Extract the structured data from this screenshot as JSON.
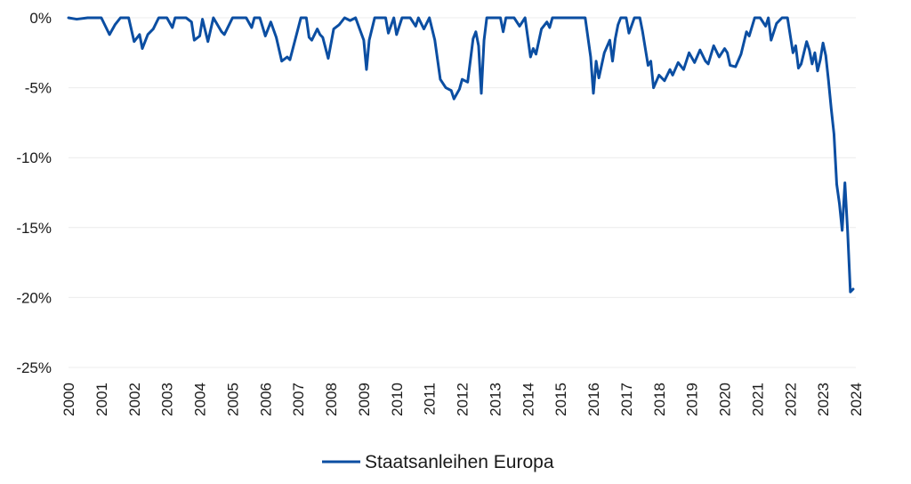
{
  "chart_data": {
    "type": "line",
    "title": "",
    "xlabel": "",
    "ylabel": "",
    "x_ticks": [
      "2000",
      "2001",
      "2002",
      "2003",
      "2004",
      "2005",
      "2006",
      "2007",
      "2008",
      "2009",
      "2010",
      "2011",
      "2012",
      "2013",
      "2014",
      "2015",
      "2016",
      "2017",
      "2018",
      "2019",
      "2020",
      "2021",
      "2022",
      "2023",
      "2024"
    ],
    "y_ticks": [
      0,
      -5,
      -10,
      -15,
      -20,
      -25
    ],
    "y_tick_labels": [
      "0%",
      "-5%",
      "-10%",
      "-15%",
      "-20%",
      "-25%"
    ],
    "xlim": [
      "2000-01",
      "2024-01"
    ],
    "ylim": [
      -25,
      0
    ],
    "grid": "horizontal",
    "legend": "bottom-center",
    "colors": {
      "series": "#0b4ea2",
      "grid": "#ececec",
      "text": "#1a1a1a"
    },
    "series": [
      {
        "name": "Staatsanleihen Europa",
        "points": [
          [
            "2000-01",
            0
          ],
          [
            "2000-04",
            -0.1
          ],
          [
            "2000-08",
            0
          ],
          [
            "2001-01",
            0
          ],
          [
            "2001-04",
            -1.2
          ],
          [
            "2001-06",
            -0.5
          ],
          [
            "2001-08",
            0
          ],
          [
            "2001-11",
            0
          ],
          [
            "2002-01",
            -1.7
          ],
          [
            "2002-03",
            -1.2
          ],
          [
            "2002-04",
            -2.2
          ],
          [
            "2002-06",
            -1.2
          ],
          [
            "2002-08",
            -0.8
          ],
          [
            "2002-10",
            0
          ],
          [
            "2003-01",
            0
          ],
          [
            "2003-03",
            -0.7
          ],
          [
            "2003-04",
            0
          ],
          [
            "2003-08",
            0
          ],
          [
            "2003-10",
            -0.3
          ],
          [
            "2003-11",
            -1.6
          ],
          [
            "2004-01",
            -1.3
          ],
          [
            "2004-02",
            -0.1
          ],
          [
            "2004-04",
            -1.7
          ],
          [
            "2004-06",
            0
          ],
          [
            "2004-09",
            -1.0
          ],
          [
            "2004-10",
            -1.2
          ],
          [
            "2005-01",
            0
          ],
          [
            "2005-06",
            0
          ],
          [
            "2005-08",
            -0.7
          ],
          [
            "2005-09",
            0
          ],
          [
            "2005-11",
            0
          ],
          [
            "2006-01",
            -1.3
          ],
          [
            "2006-03",
            -0.3
          ],
          [
            "2006-05",
            -1.4
          ],
          [
            "2006-07",
            -3.1
          ],
          [
            "2006-09",
            -2.8
          ],
          [
            "2006-10",
            -3.0
          ],
          [
            "2006-12",
            -1.5
          ],
          [
            "2007-02",
            0
          ],
          [
            "2007-04",
            0
          ],
          [
            "2007-05",
            -1.4
          ],
          [
            "2007-06",
            -1.6
          ],
          [
            "2007-08",
            -0.8
          ],
          [
            "2007-09",
            -1.2
          ],
          [
            "2007-10",
            -1.4
          ],
          [
            "2007-12",
            -2.9
          ],
          [
            "2008-02",
            -0.8
          ],
          [
            "2008-04",
            -0.5
          ],
          [
            "2008-06",
            0
          ],
          [
            "2008-08",
            -0.2
          ],
          [
            "2008-10",
            0
          ],
          [
            "2009-01",
            -1.6
          ],
          [
            "2009-02",
            -3.7
          ],
          [
            "2009-03",
            -1.6
          ],
          [
            "2009-05",
            0
          ],
          [
            "2009-09",
            0
          ],
          [
            "2009-10",
            -1.1
          ],
          [
            "2009-12",
            0
          ],
          [
            "2010-01",
            -1.2
          ],
          [
            "2010-03",
            0
          ],
          [
            "2010-06",
            0
          ],
          [
            "2010-08",
            -0.6
          ],
          [
            "2010-09",
            0
          ],
          [
            "2010-11",
            -0.8
          ],
          [
            "2011-01",
            0
          ],
          [
            "2011-03",
            -1.6
          ],
          [
            "2011-05",
            -4.4
          ],
          [
            "2011-07",
            -5.0
          ],
          [
            "2011-09",
            -5.2
          ],
          [
            "2011-10",
            -5.8
          ],
          [
            "2011-12",
            -5.1
          ],
          [
            "2012-01",
            -4.4
          ],
          [
            "2012-03",
            -4.6
          ],
          [
            "2012-05",
            -1.5
          ],
          [
            "2012-06",
            -1.0
          ],
          [
            "2012-07",
            -2.0
          ],
          [
            "2012-08",
            -5.4
          ],
          [
            "2012-09",
            -1.6
          ],
          [
            "2012-10",
            0
          ],
          [
            "2013-01",
            0
          ],
          [
            "2013-03",
            0
          ],
          [
            "2013-04",
            -1.0
          ],
          [
            "2013-05",
            0
          ],
          [
            "2013-08",
            0
          ],
          [
            "2013-10",
            -0.6
          ],
          [
            "2013-12",
            0
          ],
          [
            "2014-02",
            -2.8
          ],
          [
            "2014-03",
            -2.2
          ],
          [
            "2014-04",
            -2.6
          ],
          [
            "2014-06",
            -0.8
          ],
          [
            "2014-08",
            -0.3
          ],
          [
            "2014-09",
            -0.7
          ],
          [
            "2014-10",
            0
          ],
          [
            "2015-01",
            0
          ],
          [
            "2015-06",
            0
          ],
          [
            "2015-10",
            0
          ],
          [
            "2015-12",
            -2.8
          ],
          [
            "2016-01",
            -5.4
          ],
          [
            "2016-02",
            -3.1
          ],
          [
            "2016-03",
            -4.3
          ],
          [
            "2016-05",
            -2.5
          ],
          [
            "2016-07",
            -1.6
          ],
          [
            "2016-08",
            -3.1
          ],
          [
            "2016-09",
            -1.5
          ],
          [
            "2016-10",
            -0.5
          ],
          [
            "2016-11",
            0
          ],
          [
            "2017-01",
            0
          ],
          [
            "2017-02",
            -1.1
          ],
          [
            "2017-04",
            0
          ],
          [
            "2017-06",
            0
          ],
          [
            "2017-07",
            -1.0
          ],
          [
            "2017-09",
            -3.4
          ],
          [
            "2017-10",
            -3.1
          ],
          [
            "2017-11",
            -5.0
          ],
          [
            "2018-01",
            -4.1
          ],
          [
            "2018-03",
            -4.5
          ],
          [
            "2018-05",
            -3.7
          ],
          [
            "2018-06",
            -4.1
          ],
          [
            "2018-08",
            -3.2
          ],
          [
            "2018-10",
            -3.7
          ],
          [
            "2018-12",
            -2.5
          ],
          [
            "2019-02",
            -3.2
          ],
          [
            "2019-04",
            -2.3
          ],
          [
            "2019-06",
            -3.1
          ],
          [
            "2019-07",
            -3.3
          ],
          [
            "2019-09",
            -2.0
          ],
          [
            "2019-11",
            -2.8
          ],
          [
            "2020-01",
            -2.2
          ],
          [
            "2020-02",
            -2.5
          ],
          [
            "2020-03",
            -3.4
          ],
          [
            "2020-05",
            -3.5
          ],
          [
            "2020-07",
            -2.6
          ],
          [
            "2020-09",
            -1.0
          ],
          [
            "2020-10",
            -1.3
          ],
          [
            "2020-12",
            0
          ],
          [
            "2021-02",
            0
          ],
          [
            "2021-04",
            -0.6
          ],
          [
            "2021-05",
            0
          ],
          [
            "2021-06",
            -1.6
          ],
          [
            "2021-08",
            -0.4
          ],
          [
            "2021-10",
            0
          ],
          [
            "2021-12",
            0
          ],
          [
            "2022-02",
            -2.5
          ],
          [
            "2022-03",
            -2.0
          ],
          [
            "2022-04",
            -3.6
          ],
          [
            "2022-05",
            -3.3
          ],
          [
            "2022-06",
            -2.5
          ],
          [
            "2022-07",
            -1.7
          ],
          [
            "2022-08",
            -2.3
          ],
          [
            "2022-09",
            -3.3
          ],
          [
            "2022-10",
            -2.5
          ],
          [
            "2022-11",
            -3.8
          ],
          [
            "2022-12",
            -3.0
          ],
          [
            "2023-01",
            -1.8
          ],
          [
            "2023-02",
            -2.7
          ],
          [
            "2023-03",
            -4.5
          ],
          [
            "2023-04",
            -6.5
          ],
          [
            "2023-05",
            -8.3
          ],
          [
            "2023-06",
            -11.9
          ],
          [
            "2023-07",
            -13.3
          ],
          [
            "2023-08",
            -15.2
          ],
          [
            "2023-09",
            -11.8
          ],
          [
            "2023-10",
            -15.3
          ],
          [
            "2023-11",
            -19.6
          ],
          [
            "2023-12",
            -19.4
          ]
        ]
      }
    ]
  }
}
